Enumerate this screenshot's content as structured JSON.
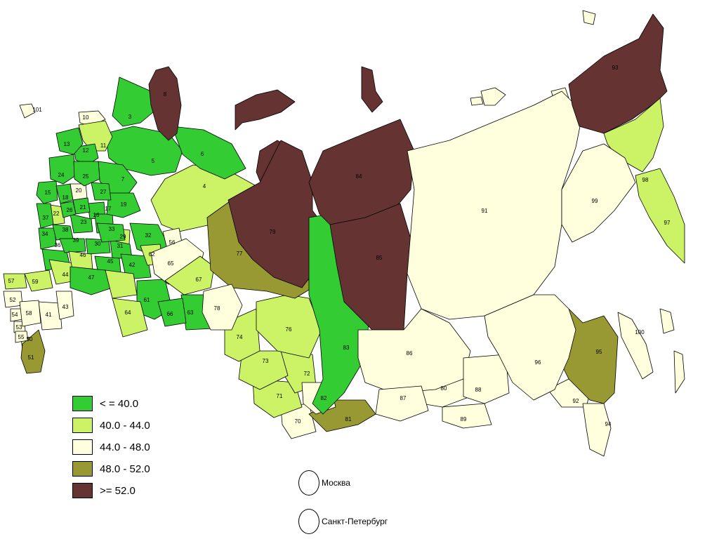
{
  "colors": {
    "c1": "#33cc33",
    "c2": "#ccf266",
    "c3": "#ffffdd",
    "c4": "#999933",
    "c5": "#663333"
  },
  "legend": [
    {
      "label": "< = 40.0",
      "color": "#33cc33"
    },
    {
      "label": "40.0 - 44.0",
      "color": "#ccf266"
    },
    {
      "label": "44.0 - 48.0",
      "color": "#ffffdd"
    },
    {
      "label": "48.0 - 52.0",
      "color": "#999933"
    },
    {
      "label": ">= 52.0",
      "color": "#663333"
    }
  ],
  "cities": [
    {
      "label": "Москва"
    },
    {
      "label": "Санкт-Петербург"
    }
  ],
  "regions": [
    {
      "id": "3",
      "cls": "c1"
    },
    {
      "id": "4",
      "cls": "c2"
    },
    {
      "id": "5",
      "cls": "c1"
    },
    {
      "id": "6",
      "cls": "c1"
    },
    {
      "id": "7",
      "cls": "c1"
    },
    {
      "id": "8",
      "cls": "c5"
    },
    {
      "id": "10",
      "cls": "c3"
    },
    {
      "id": "11",
      "cls": "c2"
    },
    {
      "id": "12",
      "cls": "c1"
    },
    {
      "id": "13",
      "cls": "c1"
    },
    {
      "id": "15",
      "cls": "c1"
    },
    {
      "id": "16",
      "cls": "c1"
    },
    {
      "id": "17",
      "cls": "c1"
    },
    {
      "id": "18",
      "cls": "c1"
    },
    {
      "id": "19",
      "cls": "c1"
    },
    {
      "id": "20",
      "cls": "c3"
    },
    {
      "id": "21",
      "cls": "c1"
    },
    {
      "id": "22",
      "cls": "c2"
    },
    {
      "id": "23",
      "cls": "c1"
    },
    {
      "id": "24",
      "cls": "c1"
    },
    {
      "id": "25",
      "cls": "c1"
    },
    {
      "id": "26",
      "cls": "c1"
    },
    {
      "id": "27",
      "cls": "c1"
    },
    {
      "id": "29",
      "cls": "c2"
    },
    {
      "id": "30",
      "cls": "c1"
    },
    {
      "id": "31",
      "cls": "c1"
    },
    {
      "id": "32",
      "cls": "c1"
    },
    {
      "id": "33",
      "cls": "c1"
    },
    {
      "id": "34",
      "cls": "c1"
    },
    {
      "id": "35",
      "cls": "c1"
    },
    {
      "id": "36",
      "cls": "c1"
    },
    {
      "id": "37",
      "cls": "c1"
    },
    {
      "id": "38",
      "cls": "c1"
    },
    {
      "id": "39",
      "cls": "c1"
    },
    {
      "id": "41",
      "cls": "c3"
    },
    {
      "id": "42",
      "cls": "c1"
    },
    {
      "id": "43",
      "cls": "c3"
    },
    {
      "id": "44",
      "cls": "c2"
    },
    {
      "id": "45",
      "cls": "c1"
    },
    {
      "id": "46",
      "cls": "c2"
    },
    {
      "id": "47",
      "cls": "c1"
    },
    {
      "id": "50",
      "cls": "c2"
    },
    {
      "id": "51",
      "cls": "c4"
    },
    {
      "id": "52",
      "cls": "c3"
    },
    {
      "id": "53",
      "cls": "c3"
    },
    {
      "id": "54",
      "cls": "c3"
    },
    {
      "id": "55",
      "cls": "c3"
    },
    {
      "id": "56",
      "cls": "c3"
    },
    {
      "id": "57",
      "cls": "c2"
    },
    {
      "id": "58",
      "cls": "c3"
    },
    {
      "id": "59",
      "cls": "c2"
    },
    {
      "id": "61",
      "cls": "c1"
    },
    {
      "id": "62",
      "cls": "c2"
    },
    {
      "id": "63",
      "cls": "c1"
    },
    {
      "id": "64",
      "cls": "c2"
    },
    {
      "id": "65",
      "cls": "c3"
    },
    {
      "id": "66",
      "cls": "c1"
    },
    {
      "id": "67",
      "cls": "c2"
    },
    {
      "id": "70",
      "cls": "c3"
    },
    {
      "id": "71",
      "cls": "c2"
    },
    {
      "id": "72",
      "cls": "c2"
    },
    {
      "id": "73",
      "cls": "c2"
    },
    {
      "id": "74",
      "cls": "c2"
    },
    {
      "id": "76",
      "cls": "c2"
    },
    {
      "id": "77",
      "cls": "c4"
    },
    {
      "id": "78",
      "cls": "c3"
    },
    {
      "id": "79",
      "cls": "c5"
    },
    {
      "id": "80",
      "cls": "c3"
    },
    {
      "id": "81",
      "cls": "c4"
    },
    {
      "id": "82",
      "cls": "c3"
    },
    {
      "id": "83",
      "cls": "c1"
    },
    {
      "id": "84",
      "cls": "c5"
    },
    {
      "id": "85",
      "cls": "c5"
    },
    {
      "id": "86",
      "cls": "c3"
    },
    {
      "id": "87",
      "cls": "c3"
    },
    {
      "id": "88",
      "cls": "c3"
    },
    {
      "id": "89",
      "cls": "c3"
    },
    {
      "id": "91",
      "cls": "c3"
    },
    {
      "id": "92",
      "cls": "c3"
    },
    {
      "id": "93",
      "cls": "c5"
    },
    {
      "id": "94",
      "cls": "c3"
    },
    {
      "id": "95",
      "cls": "c4"
    },
    {
      "id": "96",
      "cls": "c3"
    },
    {
      "id": "97",
      "cls": "c2"
    },
    {
      "id": "98",
      "cls": "c2"
    },
    {
      "id": "99",
      "cls": "c3"
    },
    {
      "id": "100",
      "cls": "c3"
    },
    {
      "id": "101",
      "cls": "c3"
    }
  ]
}
